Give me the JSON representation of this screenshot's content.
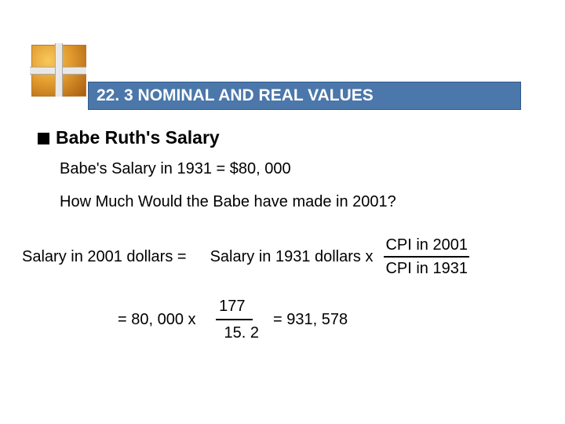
{
  "banner": {
    "title": "22. 3 NOMINAL AND REAL VALUES",
    "bg_color": "#4b77aa",
    "text_color": "#ffffff"
  },
  "heading": "Babe Ruth's Salary",
  "body": {
    "line1": "Babe's Salary in 1931 = $80, 000",
    "line2": "How Much Would the Babe have made in 2001?"
  },
  "formula": {
    "lhs": "Salary in 2001 dollars =",
    "rhs_prefix": "Salary in 1931 dollars  x",
    "fraction_num": "CPI in 2001",
    "fraction_den": "CPI in 1931"
  },
  "calculation": {
    "prefix": "= 80, 000 x",
    "fraction_num": "177",
    "fraction_den": "15. 2",
    "result": "= 931, 578"
  },
  "style": {
    "body_fontsize": 20,
    "heading_fontsize": 23,
    "banner_fontsize": 21,
    "text_color": "#000000",
    "background_color": "#ffffff"
  }
}
